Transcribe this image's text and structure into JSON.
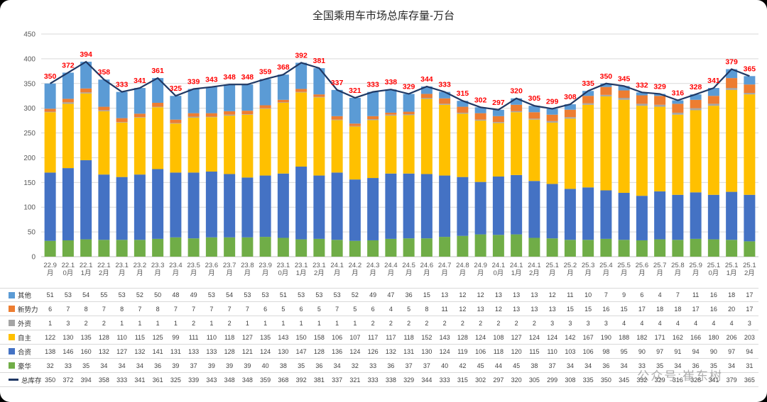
{
  "title": "全国乘用车市场总库存量-万台",
  "watermark": {
    "text": "公众号:崔东树"
  },
  "chart_data": {
    "type": "bar",
    "subtype": "stacked-bar-with-line-combo",
    "title": "全国乘用车市场总库存量-万台",
    "unit": "万台",
    "ylim": [
      0,
      450
    ],
    "ytick_step": 50,
    "grid": true,
    "data_label_color": "#FF0000",
    "legend_position": "table-left",
    "categories": [
      "22.9月",
      "22.10月",
      "22.11月",
      "22.12月",
      "23.1月",
      "23.2月",
      "23.3月",
      "23.4月",
      "23.5月",
      "23.6月",
      "23.7月",
      "23.8月",
      "23.9月",
      "23.10月",
      "23.11月",
      "23.12月",
      "24.1月",
      "24.2月",
      "24.3月",
      "24.4月",
      "24.5月",
      "24.6月",
      "24.7月",
      "24.8月",
      "24.9月",
      "24.10月",
      "24.11月",
      "24.12月",
      "25.1月",
      "25.2月",
      "25.3月",
      "25.4月",
      "25.5月",
      "25.6月",
      "25.7月",
      "25.8月",
      "25.9月",
      "25.10月",
      "25.11月",
      "25.12月"
    ],
    "series": [
      {
        "name": "豪华",
        "color": "#70AD47",
        "values": [
          32,
          33,
          35,
          34,
          34,
          34,
          36,
          39,
          37,
          39,
          39,
          39,
          40,
          38,
          35,
          36,
          34,
          32,
          33,
          36,
          37,
          37,
          40,
          42,
          45,
          44,
          45,
          38,
          37,
          34,
          34,
          36,
          34,
          33,
          35,
          34,
          36,
          35,
          34,
          31
        ]
      },
      {
        "name": "合资",
        "color": "#4472C4",
        "values": [
          138,
          146,
          160,
          132,
          127,
          132,
          141,
          131,
          133,
          133,
          128,
          121,
          124,
          130,
          147,
          128,
          136,
          124,
          126,
          132,
          131,
          130,
          124,
          119,
          106,
          118,
          120,
          115,
          110,
          103,
          106,
          98,
          95,
          90,
          97,
          91,
          94,
          90,
          97,
          94
        ]
      },
      {
        "name": "自主",
        "color": "#FFC000",
        "values": [
          122,
          130,
          135,
          128,
          110,
          115,
          125,
          99,
          111,
          110,
          118,
          127,
          135,
          143,
          150,
          158,
          106,
          107,
          117,
          117,
          118,
          152,
          143,
          128,
          124,
          108,
          127,
          124,
          124,
          142,
          167,
          190,
          188,
          182,
          171,
          162,
          166,
          180,
          206,
          203
        ]
      },
      {
        "name": "外资",
        "color": "#A5A5A5",
        "values": [
          1,
          3,
          2,
          2,
          1,
          1,
          1,
          1,
          2,
          1,
          2,
          1,
          1,
          1,
          1,
          1,
          1,
          1,
          2,
          2,
          2,
          2,
          2,
          2,
          2,
          2,
          2,
          2,
          3,
          3,
          3,
          3,
          4,
          4,
          4,
          4,
          4,
          4,
          4,
          3
        ]
      },
      {
        "name": "新势力",
        "color": "#ED7D31",
        "values": [
          6,
          7,
          8,
          7,
          8,
          7,
          8,
          7,
          7,
          7,
          7,
          7,
          6,
          5,
          6,
          5,
          7,
          5,
          6,
          4,
          5,
          8,
          11,
          12,
          13,
          12,
          13,
          13,
          13,
          15,
          15,
          16,
          15,
          17,
          18,
          18,
          17,
          16,
          20,
          17
        ]
      },
      {
        "name": "其他",
        "color": "#5B9BD5",
        "values": [
          51,
          53,
          54,
          55,
          53,
          52,
          50,
          48,
          49,
          53,
          54,
          53,
          53,
          51,
          53,
          53,
          53,
          52,
          49,
          47,
          36,
          15,
          13,
          12,
          12,
          13,
          13,
          13,
          12,
          11,
          10,
          7,
          9,
          6,
          4,
          7,
          11,
          16,
          18,
          17
        ]
      }
    ],
    "line_series": {
      "name": "总库存",
      "color": "#1F3864",
      "values": [
        350,
        372,
        394,
        358,
        333,
        341,
        361,
        325,
        339,
        343,
        348,
        348,
        359,
        368,
        392,
        381,
        337,
        321,
        333,
        338,
        329,
        344,
        333,
        315,
        302,
        297,
        320,
        305,
        299,
        308,
        335,
        350,
        345,
        332,
        329,
        316,
        328,
        341,
        379,
        365
      ]
    },
    "table_display_order": [
      "其他",
      "新势力",
      "外资",
      "自主",
      "合资",
      "豪华"
    ]
  }
}
